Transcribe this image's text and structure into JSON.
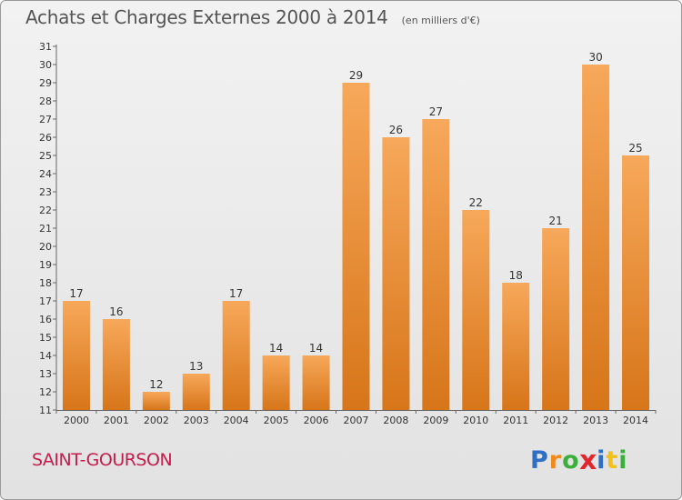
{
  "colors": {
    "bar_light": "#f7a85a",
    "bar_dark": "#d77519",
    "axis_text": "#333333",
    "title": "#555555",
    "town": "#c41d4d"
  },
  "header": {
    "title": "Achats et Charges Externes 2000 à 2014",
    "subtitle": "(en milliers d'€)"
  },
  "footer": {
    "town": "SAINT-GOURSON",
    "logo_letters": [
      {
        "ch": "P",
        "color": "#2e6fc4"
      },
      {
        "ch": "r",
        "color": "#f08a1c"
      },
      {
        "ch": "o",
        "color": "#3cae3c"
      },
      {
        "ch": "x",
        "color": "#e2262c"
      },
      {
        "ch": "i",
        "color": "#2e6fc4"
      },
      {
        "ch": "t",
        "color": "#f2c21b"
      },
      {
        "ch": "i",
        "color": "#3cae3c"
      }
    ]
  },
  "chart_data": {
    "type": "bar",
    "categories": [
      "2000",
      "2001",
      "2002",
      "2003",
      "2004",
      "2005",
      "2006",
      "2007",
      "2008",
      "2009",
      "2010",
      "2011",
      "2012",
      "2013",
      "2014"
    ],
    "values": [
      17,
      16,
      12,
      13,
      17,
      14,
      14,
      29,
      26,
      27,
      22,
      18,
      21,
      30,
      25
    ],
    "ylim": [
      11,
      31
    ],
    "yticks": [
      11,
      12,
      13,
      14,
      15,
      16,
      17,
      18,
      19,
      20,
      21,
      22,
      23,
      24,
      25,
      26,
      27,
      28,
      29,
      30,
      31
    ],
    "grid": false,
    "legend": "none"
  }
}
